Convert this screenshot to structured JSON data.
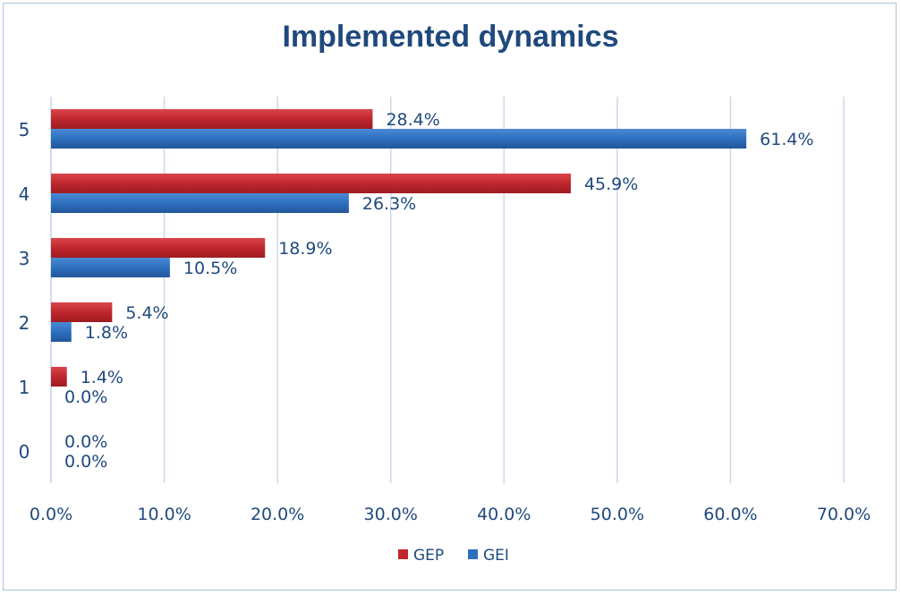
{
  "chart_data": {
    "type": "bar",
    "orientation": "horizontal",
    "title": "Implemented dynamics",
    "xlabel": "",
    "ylabel": "",
    "categories": [
      "0",
      "1",
      "2",
      "3",
      "4",
      "5"
    ],
    "series": [
      {
        "name": "GEP",
        "color": "#c0272d",
        "values": [
          0.0,
          1.4,
          5.4,
          18.9,
          45.9,
          28.4
        ],
        "labels": [
          "0.0%",
          "1.4%",
          "5.4%",
          "18.9%",
          "45.9%",
          "28.4%"
        ]
      },
      {
        "name": "GEI",
        "color": "#2e6fbf",
        "values": [
          0.0,
          0.0,
          1.8,
          10.5,
          26.3,
          61.4
        ],
        "labels": [
          "0.0%",
          "0.0%",
          "1.8%",
          "10.5%",
          "26.3%",
          "61.4%"
        ]
      }
    ],
    "xlim": [
      0,
      70
    ],
    "xticks": [
      0,
      10,
      20,
      30,
      40,
      50,
      60,
      70
    ],
    "xtick_labels": [
      "0.0%",
      "10.0%",
      "20.0%",
      "30.0%",
      "40.0%",
      "50.0%",
      "60.0%",
      "70.0%"
    ],
    "grid": true,
    "legend": "bottom-center"
  }
}
